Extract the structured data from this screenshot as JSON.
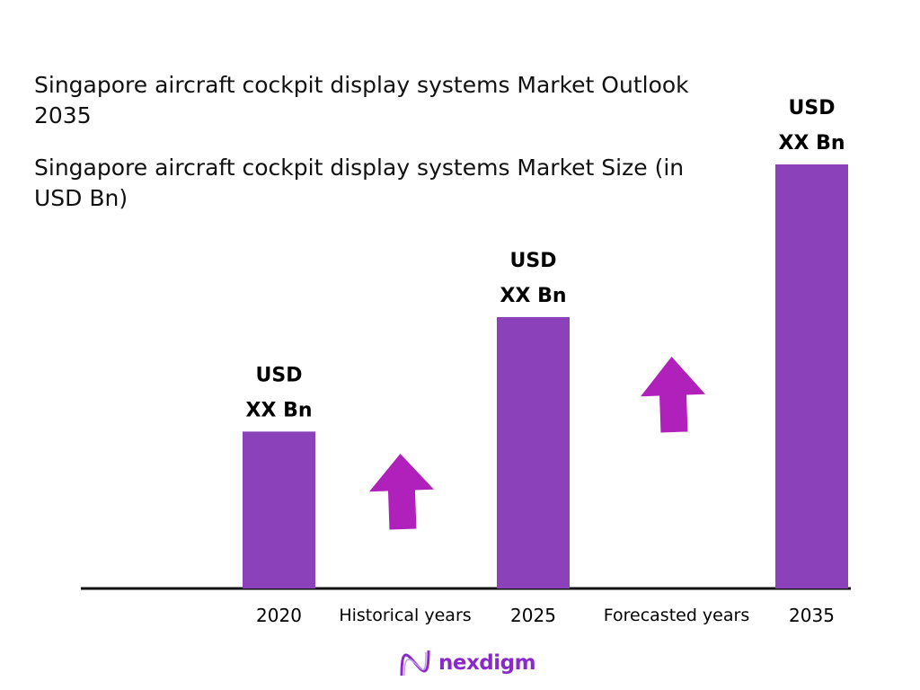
{
  "chart_data": {
    "type": "bar",
    "title": "Singapore aircraft cockpit display systems Market Outlook 2035",
    "subtitle": "Singapore aircraft cockpit display systems Market Size (in USD Bn)",
    "categories": [
      "2020",
      "2025",
      "2035"
    ],
    "values_relative": [
      0.37,
      0.64,
      1.0
    ],
    "data_labels": [
      [
        "USD",
        "XX Bn"
      ],
      [
        "USD",
        "XX Bn"
      ],
      [
        "USD",
        "XX Bn"
      ]
    ],
    "period_labels": [
      "Historical years",
      "Forecasted years"
    ],
    "grid": false,
    "legend": "none",
    "colors": {
      "bar": "#8B41BA",
      "arrow": "#B020BA",
      "axis": "#111111"
    }
  },
  "brand": {
    "name": "nexdigm",
    "color": "#8A2BC9"
  }
}
